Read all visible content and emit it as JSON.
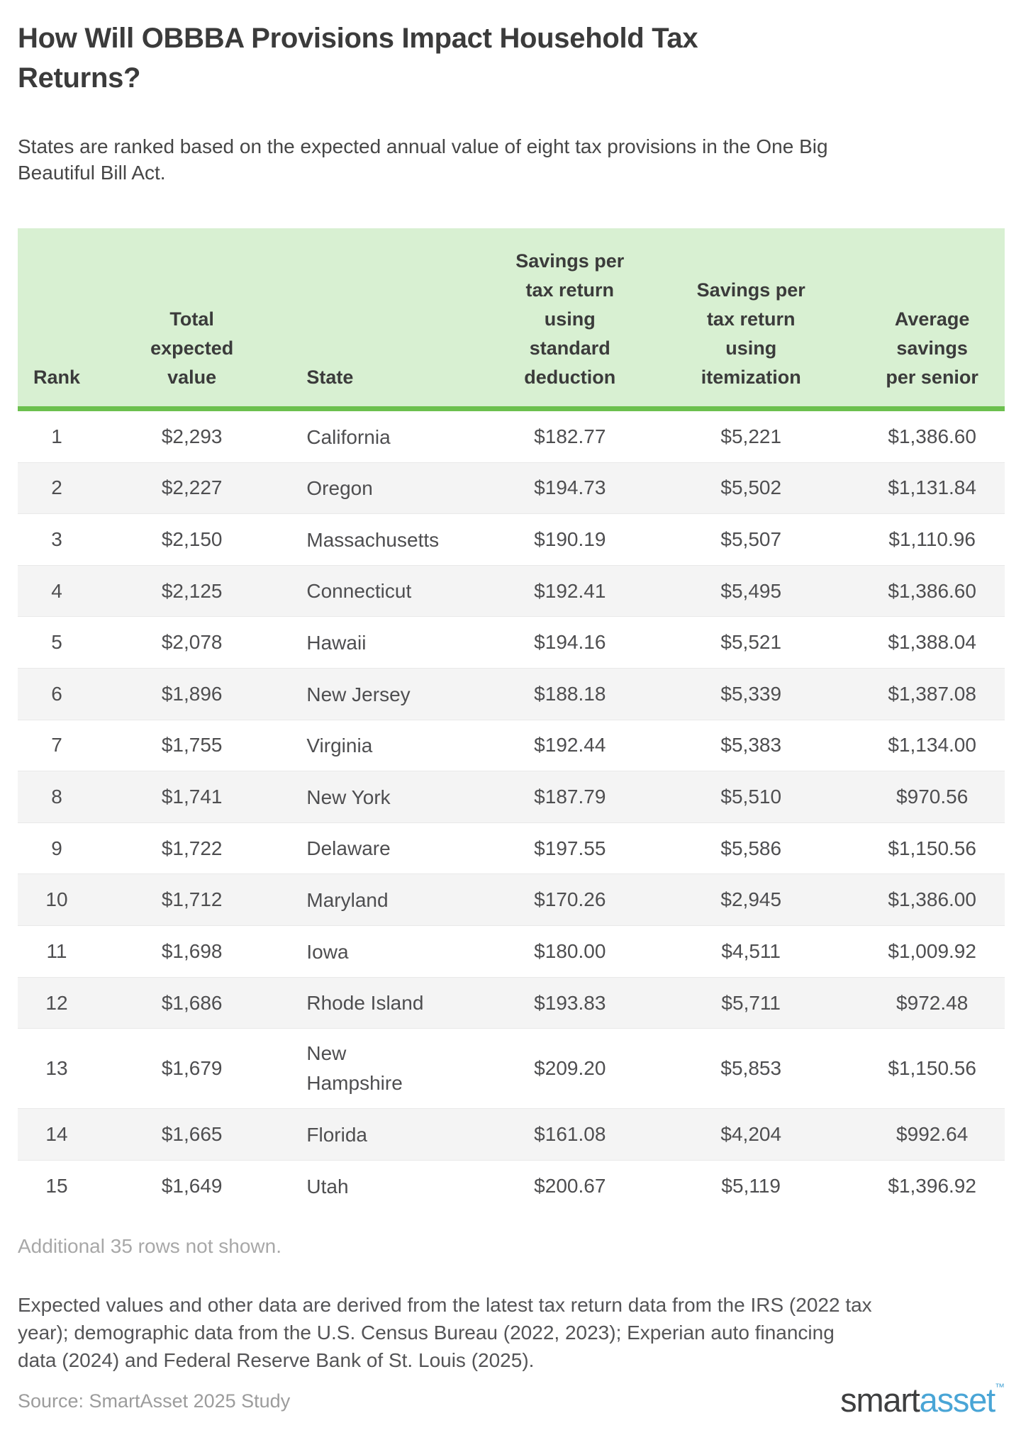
{
  "header": {
    "title": "How Will OBBBA Provisions Impact Household Tax Returns?",
    "subtitle": "States are ranked based on the expected annual value of eight tax provisions in the One Big Beautiful Bill Act."
  },
  "chart_data": {
    "type": "table",
    "title": "How Will OBBBA Provisions Impact Household Tax Returns?",
    "columns": [
      {
        "key": "rank",
        "label": "Rank"
      },
      {
        "key": "total_expected_value",
        "label": "Total\nexpected\nvalue"
      },
      {
        "key": "state",
        "label": "State"
      },
      {
        "key": "savings_standard_deduction",
        "label": "Savings per\ntax return\nusing\nstandard\ndeduction"
      },
      {
        "key": "savings_itemization",
        "label": "Savings per\ntax return\nusing\nitemization"
      },
      {
        "key": "average_savings_senior",
        "label": "Average\nsavings\nper senior"
      }
    ],
    "rows": [
      [
        "1",
        "$2,293",
        "California",
        "$182.77",
        "$5,221",
        "$1,386.60"
      ],
      [
        "2",
        "$2,227",
        "Oregon",
        "$194.73",
        "$5,502",
        "$1,131.84"
      ],
      [
        "3",
        "$2,150",
        "Massachusetts",
        "$190.19",
        "$5,507",
        "$1,110.96"
      ],
      [
        "4",
        "$2,125",
        "Connecticut",
        "$192.41",
        "$5,495",
        "$1,386.60"
      ],
      [
        "5",
        "$2,078",
        "Hawaii",
        "$194.16",
        "$5,521",
        "$1,388.04"
      ],
      [
        "6",
        "$1,896",
        "New Jersey",
        "$188.18",
        "$5,339",
        "$1,387.08"
      ],
      [
        "7",
        "$1,755",
        "Virginia",
        "$192.44",
        "$5,383",
        "$1,134.00"
      ],
      [
        "8",
        "$1,741",
        "New York",
        "$187.79",
        "$5,510",
        "$970.56"
      ],
      [
        "9",
        "$1,722",
        "Delaware",
        "$197.55",
        "$5,586",
        "$1,150.56"
      ],
      [
        "10",
        "$1,712",
        "Maryland",
        "$170.26",
        "$2,945",
        "$1,386.00"
      ],
      [
        "11",
        "$1,698",
        "Iowa",
        "$180.00",
        "$4,511",
        "$1,009.92"
      ],
      [
        "12",
        "$1,686",
        "Rhode Island",
        "$193.83",
        "$5,711",
        "$972.48"
      ],
      [
        "13",
        "$1,679",
        "New Hampshire",
        "$209.20",
        "$5,853",
        "$1,150.56"
      ],
      [
        "14",
        "$1,665",
        "Florida",
        "$161.08",
        "$4,204",
        "$992.64"
      ],
      [
        "15",
        "$1,649",
        "Utah",
        "$200.67",
        "$5,119",
        "$1,396.92"
      ]
    ],
    "note": "Additional 35 rows not shown."
  },
  "footer": {
    "methodology": "Expected values and other data are derived from the latest tax return data from the IRS (2022 tax year); demographic data from the U.S. Census Bureau (2022, 2023); Experian auto financing data (2024) and Federal Reserve Bank of St. Louis (2025).",
    "source": "Source: SmartAsset 2025 Study",
    "logo": {
      "smart": "smart",
      "asset": "asset",
      "tm": "™"
    }
  },
  "colors": {
    "header-bg": "#d8f0d2",
    "header-border": "#6cc04e",
    "alt-row": "#f4f4f4",
    "text-dark": "#3b3b3b",
    "text-sub": "#464646",
    "text-body": "#4e4e50",
    "text-note": "#545456",
    "text-muted": "#a8a8a8",
    "source-gray": "#9c9c9c",
    "logo-dark": "#3e3f40",
    "logo-blue": "#49a5d6"
  }
}
